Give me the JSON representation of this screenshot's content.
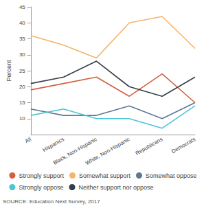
{
  "chart_data": {
    "type": "line",
    "y_label": "Percent",
    "source": "SOURCE: Education Next Survey, 2017",
    "categories": [
      "All",
      "Hispanics",
      "Black, Non-Hispanic",
      "White, Non-Hispanic",
      "Republicans",
      "Democrats"
    ],
    "series": [
      {
        "name": "Strongly support",
        "color": "#d2603e",
        "values": [
          19,
          21,
          23,
          17,
          24,
          15
        ]
      },
      {
        "name": "Somewhat support",
        "color": "#f5b36b",
        "values": [
          36,
          33,
          29,
          40,
          42,
          32
        ]
      },
      {
        "name": "Somewhat oppose",
        "color": "#5b7896",
        "values": [
          13,
          11,
          11,
          14,
          10,
          15
        ]
      },
      {
        "name": "Strongly oppose",
        "color": "#4dc5d2",
        "values": [
          11,
          13,
          10,
          10,
          7,
          14
        ]
      },
      {
        "name": "Neither support nor oppose",
        "color": "#343e48",
        "values": [
          21,
          23,
          28,
          20,
          17,
          23
        ]
      }
    ],
    "ylim": [
      5,
      45
    ],
    "yticks": [
      10,
      15,
      20,
      25,
      30,
      35,
      40,
      45
    ],
    "grid": false,
    "legend": "bottom"
  }
}
